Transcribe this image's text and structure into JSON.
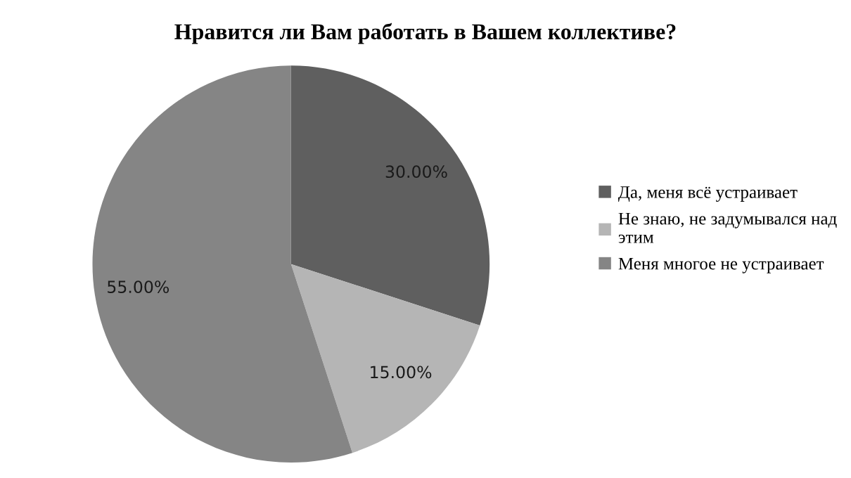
{
  "chart_data": {
    "type": "pie",
    "title": "Нравится ли Вам работать в Вашем коллективе?",
    "categories": [
      "Да, меня всё устраивает",
      "Не знаю, не задумывался над этим",
      "Меня многое не устраивает"
    ],
    "values": [
      30,
      15,
      55
    ],
    "value_labels": [
      "30.00%",
      "15.00%",
      "55.00%"
    ],
    "colors": [
      "#5f5f5f",
      "#b5b5b5",
      "#858585"
    ],
    "legend": "right"
  }
}
